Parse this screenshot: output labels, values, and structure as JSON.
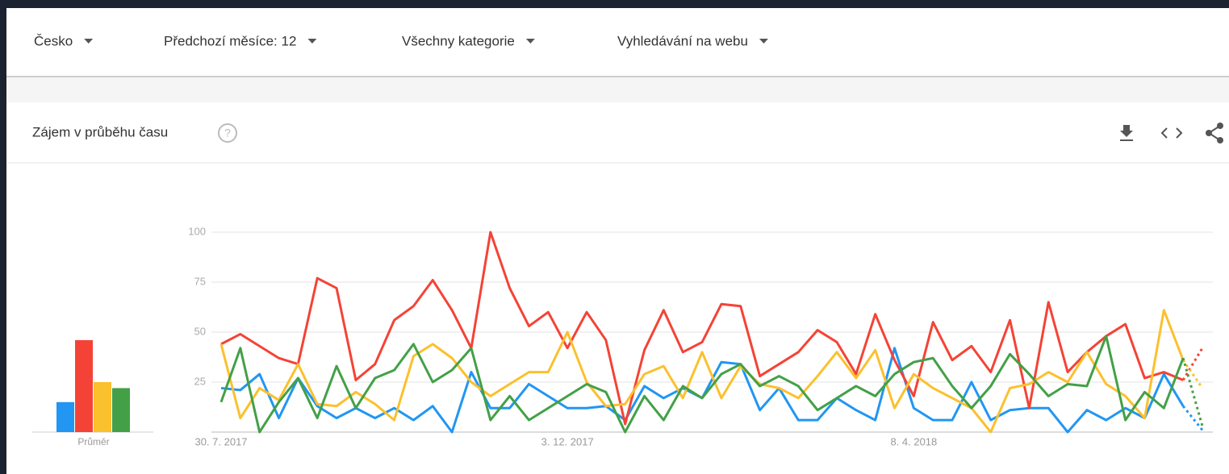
{
  "filters": [
    "Česko",
    "Předchozí měsíce: 12",
    "Všechny kategorie",
    "Vyhledávání na webu"
  ],
  "card": {
    "title": "Zájem v průběhu času"
  },
  "chart_data": {
    "type": "line",
    "categories": [
      "30. 7. 2017",
      null,
      null,
      null,
      null,
      null,
      null,
      null,
      null,
      null,
      null,
      null,
      null,
      null,
      null,
      null,
      null,
      null,
      "3. 12. 2017",
      null,
      null,
      null,
      null,
      null,
      null,
      null,
      null,
      null,
      null,
      null,
      null,
      null,
      null,
      null,
      null,
      null,
      "8. 4. 2018",
      null,
      null,
      null,
      null,
      null,
      null,
      null,
      null,
      null,
      null,
      null,
      null,
      null,
      null,
      null
    ],
    "ylim": [
      0,
      100
    ],
    "yticks": [
      25,
      50,
      75,
      100
    ],
    "grid": true,
    "last_segment_dashed": true,
    "average_label": "Průměr",
    "series": [
      {
        "color": "#2196f3",
        "average": 15,
        "values": [
          22,
          21,
          29,
          7,
          27,
          13,
          7,
          12,
          7,
          12,
          6,
          13,
          0,
          30,
          12,
          12,
          24,
          18,
          12,
          12,
          13,
          6,
          23,
          17,
          22,
          17,
          35,
          34,
          11,
          22,
          6,
          6,
          17,
          11,
          6,
          42,
          12,
          6,
          6,
          25,
          6,
          11,
          12,
          12,
          0,
          11,
          6,
          12,
          7,
          29,
          13,
          1
        ]
      },
      {
        "color": "#f44336",
        "average": 46,
        "values": [
          44,
          49,
          43,
          37,
          34,
          77,
          72,
          26,
          34,
          56,
          63,
          76,
          61,
          42,
          100,
          72,
          53,
          60,
          42,
          60,
          46,
          4,
          41,
          61,
          40,
          45,
          64,
          63,
          28,
          34,
          40,
          51,
          45,
          29,
          59,
          36,
          18,
          55,
          36,
          43,
          30,
          56,
          12,
          65,
          30,
          40,
          48,
          54,
          27,
          30,
          26,
          42
        ]
      },
      {
        "color": "#fbc02d",
        "average": 25,
        "values": [
          44,
          7,
          22,
          16,
          34,
          14,
          13,
          20,
          14,
          6,
          38,
          44,
          37,
          25,
          18,
          24,
          30,
          30,
          50,
          25,
          13,
          14,
          29,
          33,
          17,
          40,
          17,
          33,
          24,
          22,
          17,
          28,
          40,
          27,
          41,
          12,
          29,
          22,
          17,
          12,
          0,
          22,
          24,
          30,
          25,
          40,
          24,
          18,
          7,
          61,
          36,
          22
        ]
      },
      {
        "color": "#43a047",
        "average": 22,
        "values": [
          15,
          42,
          0,
          15,
          27,
          7,
          33,
          12,
          27,
          31,
          44,
          25,
          31,
          42,
          6,
          18,
          6,
          12,
          18,
          24,
          20,
          0,
          18,
          6,
          23,
          17,
          29,
          34,
          23,
          28,
          23,
          11,
          17,
          23,
          18,
          29,
          35,
          37,
          23,
          12,
          23,
          39,
          29,
          18,
          24,
          23,
          48,
          6,
          20,
          12,
          37,
          3
        ]
      }
    ]
  }
}
